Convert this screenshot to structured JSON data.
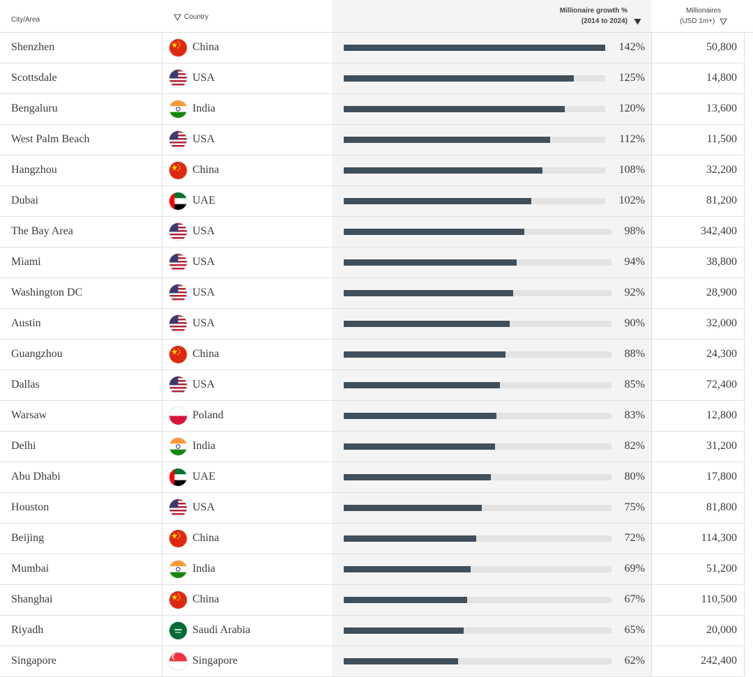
{
  "header": {
    "city": "City/Area",
    "country": "Country",
    "growth_line1": "Millionaire growth %",
    "growth_line2": "(2014 to 2024)",
    "millionaires_line1": "Millionaires",
    "millionaires_line2": "(USD 1m+)"
  },
  "colors": {
    "bar_fill": "#3f4f5c",
    "bar_track": "#e3e3e3",
    "growth_column_bg": "#f4f4f4"
  },
  "max_growth": 142,
  "rows": [
    {
      "city": "Shenzhen",
      "country": "China",
      "flag": "china-flag-icon",
      "growth": 142,
      "growth_label": "142%",
      "millionaires": "50,800"
    },
    {
      "city": "Scottsdale",
      "country": "USA",
      "flag": "usa-flag-icon",
      "growth": 125,
      "growth_label": "125%",
      "millionaires": "14,800"
    },
    {
      "city": "Bengaluru",
      "country": "India",
      "flag": "india-flag-icon",
      "growth": 120,
      "growth_label": "120%",
      "millionaires": "13,600"
    },
    {
      "city": "West Palm Beach",
      "country": "USA",
      "flag": "usa-flag-icon",
      "growth": 112,
      "growth_label": "112%",
      "millionaires": "11,500"
    },
    {
      "city": "Hangzhou",
      "country": "China",
      "flag": "china-flag-icon",
      "growth": 108,
      "growth_label": "108%",
      "millionaires": "32,200"
    },
    {
      "city": "Dubai",
      "country": "UAE",
      "flag": "uae-flag-icon",
      "growth": 102,
      "growth_label": "102%",
      "millionaires": "81,200"
    },
    {
      "city": "The Bay Area",
      "country": "USA",
      "flag": "usa-flag-icon",
      "growth": 98,
      "growth_label": "98%",
      "millionaires": "342,400"
    },
    {
      "city": "Miami",
      "country": "USA",
      "flag": "usa-flag-icon",
      "growth": 94,
      "growth_label": "94%",
      "millionaires": "38,800"
    },
    {
      "city": "Washington DC",
      "country": "USA",
      "flag": "usa-flag-icon",
      "growth": 92,
      "growth_label": "92%",
      "millionaires": "28,900"
    },
    {
      "city": "Austin",
      "country": "USA",
      "flag": "usa-flag-icon",
      "growth": 90,
      "growth_label": "90%",
      "millionaires": "32,000"
    },
    {
      "city": "Guangzhou",
      "country": "China",
      "flag": "china-flag-icon",
      "growth": 88,
      "growth_label": "88%",
      "millionaires": "24,300"
    },
    {
      "city": "Dallas",
      "country": "USA",
      "flag": "usa-flag-icon",
      "growth": 85,
      "growth_label": "85%",
      "millionaires": "72,400"
    },
    {
      "city": "Warsaw",
      "country": "Poland",
      "flag": "poland-flag-icon",
      "growth": 83,
      "growth_label": "83%",
      "millionaires": "12,800"
    },
    {
      "city": "Delhi",
      "country": "India",
      "flag": "india-flag-icon",
      "growth": 82,
      "growth_label": "82%",
      "millionaires": "31,200"
    },
    {
      "city": "Abu Dhabi",
      "country": "UAE",
      "flag": "uae-flag-icon",
      "growth": 80,
      "growth_label": "80%",
      "millionaires": "17,800"
    },
    {
      "city": "Houston",
      "country": "USA",
      "flag": "usa-flag-icon",
      "growth": 75,
      "growth_label": "75%",
      "millionaires": "81,800"
    },
    {
      "city": "Beijing",
      "country": "China",
      "flag": "china-flag-icon",
      "growth": 72,
      "growth_label": "72%",
      "millionaires": "114,300"
    },
    {
      "city": "Mumbai",
      "country": "India",
      "flag": "india-flag-icon",
      "growth": 69,
      "growth_label": "69%",
      "millionaires": "51,200"
    },
    {
      "city": "Shanghai",
      "country": "China",
      "flag": "china-flag-icon",
      "growth": 67,
      "growth_label": "67%",
      "millionaires": "110,500"
    },
    {
      "city": "Riyadh",
      "country": "Saudi Arabia",
      "flag": "saudi-flag-icon",
      "growth": 65,
      "growth_label": "65%",
      "millionaires": "20,000"
    },
    {
      "city": "Singapore",
      "country": "Singapore",
      "flag": "singapore-flag-icon",
      "growth": 62,
      "growth_label": "62%",
      "millionaires": "242,400"
    }
  ]
}
